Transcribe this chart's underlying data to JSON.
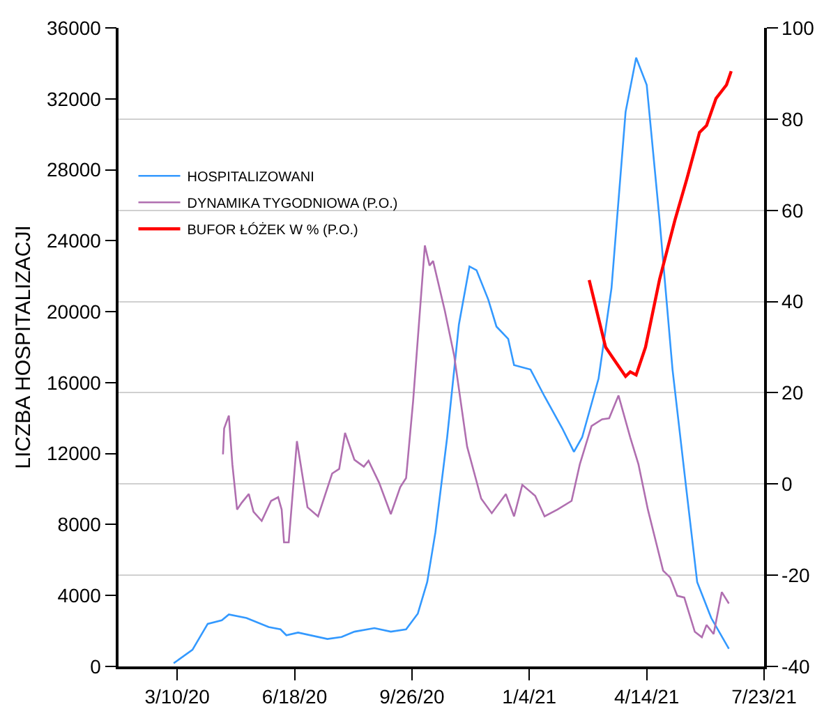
{
  "chart_data": {
    "type": "line",
    "ylabel": "LICZBA HOSPITALIZACJI",
    "xlim": [
      "2020-01-20",
      "2021-07-23"
    ],
    "xticks": [
      {
        "value": "2020-03-10",
        "label": "3/10/20"
      },
      {
        "value": "2020-06-18",
        "label": "6/18/20"
      },
      {
        "value": "2020-09-26",
        "label": "9/26/20"
      },
      {
        "value": "2021-01-04",
        "label": "1/4/21"
      },
      {
        "value": "2021-04-14",
        "label": "4/14/21"
      },
      {
        "value": "2021-07-23",
        "label": "7/23/21"
      }
    ],
    "ylim": [
      0,
      36000
    ],
    "yticks": [
      0,
      4000,
      8000,
      12000,
      16000,
      20000,
      24000,
      28000,
      32000,
      36000
    ],
    "y2lim": [
      -40,
      100
    ],
    "y2ticks": [
      -40,
      -20,
      0,
      20,
      40,
      60,
      80,
      100
    ],
    "grid": true,
    "legend": "top left",
    "series": [
      {
        "name": "HOSPITALIZOWANI",
        "color": "#3399ff",
        "x": [
          "2020-03-07",
          "2020-03-23",
          "2020-04-05",
          "2020-04-17",
          "2020-04-23",
          "2020-05-08",
          "2020-05-27",
          "2020-06-06",
          "2020-06-11",
          "2020-06-21",
          "2020-07-16",
          "2020-07-28",
          "2020-08-08",
          "2020-08-25",
          "2020-09-08",
          "2020-09-21",
          "2020-10-01",
          "2020-10-09",
          "2020-10-16",
          "2020-10-26",
          "2020-11-05",
          "2020-11-14",
          "2020-11-20",
          "2020-11-30",
          "2020-12-07",
          "2020-12-17",
          "2020-12-22",
          "2021-01-05",
          "2021-01-17",
          "2021-02-01",
          "2021-02-11",
          "2021-02-18",
          "2021-03-04",
          "2021-03-15",
          "2021-03-27",
          "2021-04-05",
          "2021-04-14",
          "2021-04-25",
          "2021-05-06",
          "2021-05-18",
          "2021-05-27",
          "2021-06-08",
          "2021-06-23"
        ],
        "values": [
          180,
          940,
          2400,
          2600,
          2930,
          2730,
          2220,
          2090,
          1760,
          1910,
          1550,
          1660,
          1960,
          2160,
          1960,
          2090,
          2980,
          4760,
          7570,
          12920,
          19280,
          22550,
          22340,
          20690,
          19160,
          18470,
          16990,
          16740,
          15220,
          13430,
          12100,
          12920,
          16230,
          21320,
          31260,
          34320,
          32790,
          25150,
          16740,
          9860,
          4760,
          2730,
          1000
        ]
      },
      {
        "name": "DYNAMIKA TYGODNIOWA (P.O.)",
        "color": "#b06fb0",
        "axis": "y2",
        "x": [
          "2020-04-18",
          "2020-04-19",
          "2020-04-23",
          "2020-04-26",
          "2020-04-30",
          "2020-05-04",
          "2020-05-10",
          "2020-05-14",
          "2020-05-21",
          "2020-05-29",
          "2020-06-04",
          "2020-06-07",
          "2020-06-09",
          "2020-06-13",
          "2020-06-20",
          "2020-06-29",
          "2020-07-08",
          "2020-07-20",
          "2020-07-26",
          "2020-07-31",
          "2020-08-08",
          "2020-08-16",
          "2020-08-20",
          "2020-08-29",
          "2020-09-08",
          "2020-09-16",
          "2020-09-21",
          "2020-09-27",
          "2020-10-07",
          "2020-10-11",
          "2020-10-14",
          "2020-10-24",
          "2020-11-01",
          "2020-11-12",
          "2020-11-24",
          "2020-12-03",
          "2020-12-15",
          "2020-12-22",
          "2020-12-29",
          "2021-01-09",
          "2021-01-17",
          "2021-01-28",
          "2021-02-09",
          "2021-02-16",
          "2021-02-26",
          "2021-03-07",
          "2021-03-13",
          "2021-03-21",
          "2021-03-31",
          "2021-04-07",
          "2021-04-15",
          "2021-04-28",
          "2021-05-04",
          "2021-05-10",
          "2021-05-16",
          "2021-05-25",
          "2021-05-31",
          "2021-06-04",
          "2021-06-10",
          "2021-06-17",
          "2021-06-23"
        ],
        "values": [
          6.5,
          12.2,
          15.0,
          4.3,
          -5.6,
          -4.1,
          -2.2,
          -6.1,
          -8.1,
          -3.7,
          -2.9,
          -5.6,
          -12.8,
          -12.8,
          9.4,
          -5.1,
          -7.1,
          2.3,
          3.3,
          11.2,
          5.3,
          3.8,
          5.1,
          0.3,
          -6.6,
          -0.7,
          1.3,
          18.2,
          52.3,
          47.9,
          48.9,
          38.0,
          28.1,
          8.2,
          -3.2,
          -6.4,
          -2.2,
          -7.1,
          -0.2,
          -2.6,
          -7.1,
          -5.6,
          -3.7,
          4.3,
          12.7,
          14.2,
          14.4,
          19.4,
          10.2,
          4.3,
          -5.6,
          -19.0,
          -20.5,
          -24.5,
          -24.9,
          -32.4,
          -33.6,
          -30.9,
          -32.9,
          -23.7,
          -26.2
        ]
      },
      {
        "name": "BUFOR ŁÓŻEK W % (P.O.)",
        "color": "#ff0000",
        "axis": "y2",
        "x": [
          "2021-02-24",
          "2021-03-10",
          "2021-03-15",
          "2021-03-27",
          "2021-03-31",
          "2021-04-05",
          "2021-04-13",
          "2021-04-25",
          "2021-05-08",
          "2021-05-18",
          "2021-05-29",
          "2021-06-04",
          "2021-06-12",
          "2021-06-21",
          "2021-06-25"
        ],
        "values": [
          44.7,
          30.0,
          28.1,
          23.6,
          24.6,
          23.9,
          30.0,
          44.9,
          57.8,
          66.7,
          77.1,
          78.6,
          84.5,
          87.5,
          90.5
        ]
      }
    ]
  }
}
